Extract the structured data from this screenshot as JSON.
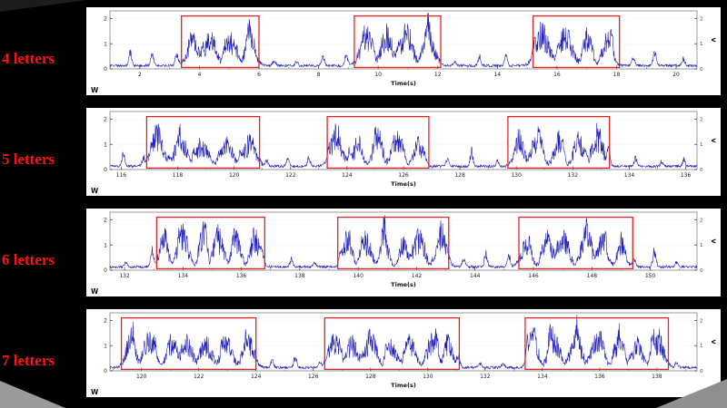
{
  "colors": {
    "signal": "#2020b8",
    "highlight_box": "#e32222",
    "panel_label": "#ff1111",
    "figure_bg": "#ffffff",
    "page_bg": "#000000",
    "axis_text": "#222222"
  },
  "chart_data": {
    "type": "line",
    "xlabel": "Time(s)",
    "ylim": [
      0,
      2.3
    ],
    "y_ticks": [
      0,
      1,
      2
    ],
    "grid": "light-dashed",
    "legend": "none",
    "panels": [
      {
        "label": "4 letters",
        "letters": 4,
        "x_min": 1.0,
        "x_max": 20.7,
        "x_ticks": [
          2,
          4,
          6,
          8,
          10,
          12,
          14,
          16,
          18,
          20
        ],
        "boxes": [
          [
            3.4,
            6.0
          ],
          [
            9.2,
            12.1
          ],
          [
            15.2,
            18.1
          ]
        ],
        "left_corner_label": "W",
        "right_axis_label": "V",
        "seed": 11
      },
      {
        "label": "5 letters",
        "letters": 5,
        "x_min": 115.6,
        "x_max": 136.4,
        "x_ticks": [
          116,
          118,
          120,
          122,
          124,
          126,
          128,
          130,
          132,
          134,
          136
        ],
        "boxes": [
          [
            116.9,
            120.9
          ],
          [
            123.3,
            126.9
          ],
          [
            129.7,
            133.3
          ]
        ],
        "left_corner_label": "W",
        "right_axis_label": "V",
        "seed": 22
      },
      {
        "label": "6 letters",
        "letters": 6,
        "x_min": 131.5,
        "x_max": 151.6,
        "x_ticks": [
          132,
          134,
          136,
          138,
          140,
          142,
          144,
          146,
          148,
          150
        ],
        "boxes": [
          [
            133.1,
            136.8
          ],
          [
            139.3,
            143.1
          ],
          [
            145.5,
            149.4
          ]
        ],
        "left_corner_label": "W",
        "right_axis_label": "V",
        "seed": 33
      },
      {
        "label": "7 letters",
        "letters": 7,
        "x_min": 118.9,
        "x_max": 139.4,
        "x_ticks": [
          120,
          122,
          124,
          126,
          128,
          130,
          132,
          134,
          136,
          138
        ],
        "boxes": [
          [
            119.3,
            124.0
          ],
          [
            126.4,
            131.1
          ],
          [
            133.4,
            138.4
          ]
        ],
        "left_corner_label": "W",
        "right_axis_label": "V",
        "seed": 44
      }
    ]
  }
}
